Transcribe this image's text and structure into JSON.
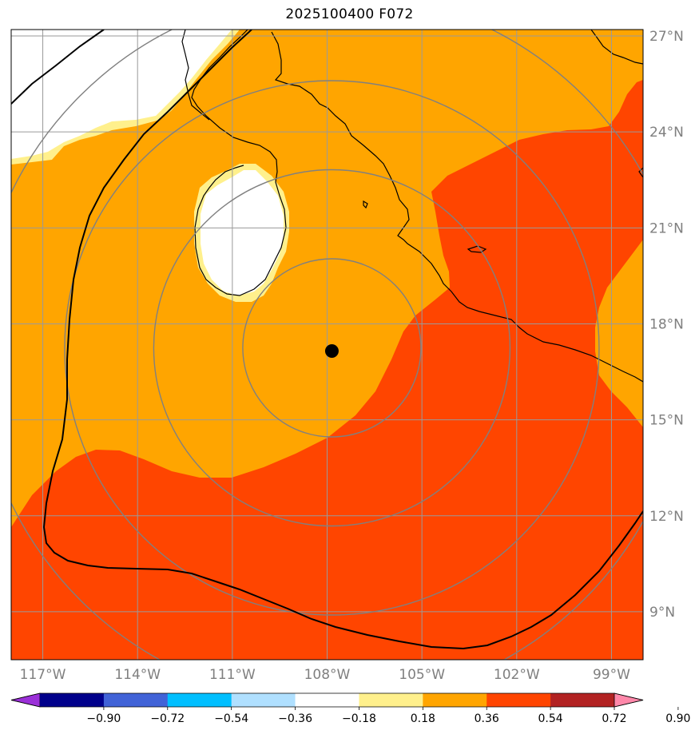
{
  "title": "2025100400 F072",
  "map": {
    "lon_range": [
      -118,
      -98
    ],
    "lat_range": [
      7.5,
      27.2
    ],
    "lat_ticks": [
      {
        "value": 27,
        "label": "27°N"
      },
      {
        "value": 24,
        "label": "24°N"
      },
      {
        "value": 21,
        "label": "21°N"
      },
      {
        "value": 18,
        "label": "18°N"
      },
      {
        "value": 15,
        "label": "15°N"
      },
      {
        "value": 12,
        "label": "12°N"
      },
      {
        "value": 9,
        "label": "9°N"
      }
    ],
    "lon_ticks": [
      {
        "value": -117,
        "label": "117°W"
      },
      {
        "value": -114,
        "label": "114°W"
      },
      {
        "value": -111,
        "label": "111°W"
      },
      {
        "value": -108,
        "label": "108°W"
      },
      {
        "value": -105,
        "label": "105°W"
      },
      {
        "value": -102,
        "label": "102°W"
      },
      {
        "value": -99,
        "label": "99°W"
      }
    ],
    "center_marker": {
      "lon": -107.85,
      "lat": 17.15
    },
    "range_rings_count": 4,
    "colors": {
      "ocean_orange": "#ffa500",
      "red_orange": "#ff4500",
      "light_yellow": "#fff08c",
      "white": "#ffffff",
      "coast": "#000000",
      "grid": "#9a9a9a",
      "rings": "#808080"
    }
  },
  "colorbar": {
    "colors": [
      "#9b30d8",
      "#00008b",
      "#4163d7",
      "#00bfff",
      "#b0e0ff",
      "#ffffff",
      "#fff08c",
      "#ffa500",
      "#ff4500",
      "#b22222",
      "#ff88aa"
    ],
    "labels": [
      "−0.90",
      "−0.72",
      "−0.54",
      "−0.36",
      "−0.18",
      "0.18",
      "0.36",
      "0.54",
      "0.72",
      "0.90"
    ]
  }
}
